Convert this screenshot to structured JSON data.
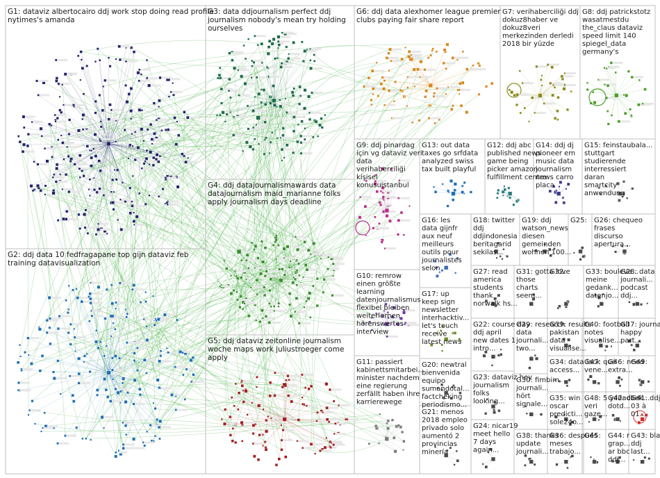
{
  "groups": [
    {
      "id": "G1",
      "keywords": [
        "dataviz albertocairo ddj work stop doing read profile",
        "nytimes's amanda"
      ],
      "color": "#23236b",
      "nodes": 260
    },
    {
      "id": "G2",
      "keywords": [
        "ddj data 10 fedfragapane top gijn dataviz feb",
        "training datavisualization"
      ],
      "color": "#1f6fb4",
      "nodes": 200
    },
    {
      "id": "G3",
      "keywords": [
        "data ddjournalism perfect ddj",
        "journalism nobody's mean try holding",
        "ourselves"
      ],
      "color": "#1e6b4a",
      "nodes": 150
    },
    {
      "id": "G4",
      "keywords": [
        "ddj datajournalismawards data",
        "datajournalism maid_marianne folks",
        "apply journalism days deadline"
      ],
      "color": "#3a8f2e",
      "nodes": 130
    },
    {
      "id": "G5",
      "keywords": [
        "ddj dataviz zeitonline journalism",
        "woche maps work juliustroeger come",
        "apply"
      ],
      "color": "#a21f1f",
      "nodes": 110
    },
    {
      "id": "G6",
      "keywords": [
        "ddj data alexhomer league premier",
        "clubs paying fair share report"
      ],
      "color": "#d9861a",
      "nodes": 90
    },
    {
      "id": "G7",
      "keywords": [
        "verihaberciliği ddj",
        "dokuz8haber ve",
        "dokuz8veri",
        "merkezinden derledi",
        "2018 bir yüzde"
      ],
      "color": "#8a8a1a",
      "nodes": 35
    },
    {
      "id": "G8",
      "keywords": [
        "ddj patrickstotz",
        "wasatmestdu",
        "the_claus dataviz",
        "speed limit 140",
        "spiegel_data",
        "germany's"
      ],
      "color": "#4a9e2a",
      "nodes": 30
    },
    {
      "id": "G9",
      "keywords": [
        "ddj pinardag",
        "için vg dataviz veri",
        "data",
        "verihaberciliği",
        "kişisel",
        "konusuistanbul"
      ],
      "color": "#b82d8a",
      "nodes": 40
    },
    {
      "id": "G10",
      "keywords": [
        "remrow",
        "einen größte",
        "learning",
        "datenjournalismus",
        "flexibel bleiben",
        "weiterlernen",
        "hörenswertes",
        "interview"
      ],
      "color": "#6b3a9e",
      "nodes": 20
    },
    {
      "id": "G11",
      "keywords": [
        "passiert",
        "kabinettsmitarbei...",
        "minister nachdem",
        "eine regierung",
        "zerfällt haben ihre",
        "karrierewege"
      ],
      "color": "#7a7a7a",
      "nodes": 18
    },
    {
      "id": "G12",
      "keywords": [
        "ddj abc",
        "published news",
        "game being",
        "picker amazon",
        "fulfillment centre"
      ],
      "color": "#2a7a7a",
      "nodes": 14
    },
    {
      "id": "G13",
      "keywords": [
        "out data",
        "taxes go srfdata",
        "analyzed swiss",
        "tax built playful"
      ],
      "color": "#1f6fb4",
      "nodes": 15
    },
    {
      "id": "G14",
      "keywords": [
        "ddj dj",
        "pioneer em",
        "music data",
        "journalism",
        "news carro",
        "placa"
      ],
      "color": "#3a3a8a",
      "nodes": 12
    },
    {
      "id": "G15",
      "keywords": [
        "feinstaubala...",
        "stuttgart",
        "studierende",
        "interressiert",
        "daran",
        "smartcity",
        "anwendung"
      ],
      "color": "#5a5a5a",
      "nodes": 10
    },
    {
      "id": "G16",
      "keywords": [
        "les",
        "data gijnfr",
        "aux neuf",
        "meilleurs",
        "outils pour",
        "journalistes",
        "selon"
      ],
      "color": "#3a6bb4",
      "nodes": 8
    },
    {
      "id": "G17",
      "keywords": [
        "up",
        "keep sign",
        "newsletter",
        "interhacktiv...",
        "let's touch",
        "receive",
        "latest news"
      ],
      "color": "#6b8a2a",
      "nodes": 10
    },
    {
      "id": "G18",
      "keywords": [
        "twitter",
        "ddj",
        "ddjindonesia",
        "beritagarid",
        "sekilas..."
      ],
      "color": "#4a4a4a",
      "nodes": 6
    },
    {
      "id": "G19",
      "keywords": [
        "ddj",
        "watson_news",
        "diesen",
        "gemeinden",
        "wohnen 100..."
      ],
      "color": "#4a4a4a",
      "nodes": 6
    },
    {
      "id": "G20",
      "keywords": [
        "newtral",
        "bienvenida",
        "equipo",
        "sumandotal...",
        "factcheking",
        "periodismo..."
      ],
      "color": "#4a4a4a",
      "nodes": 8
    },
    {
      "id": "G21",
      "keywords": [
        "menos",
        "2018 empleo",
        "privado solo",
        "aumentó 2",
        "provincias",
        "minería"
      ],
      "color": "#4a4a4a",
      "nodes": 6
    },
    {
      "id": "G22",
      "keywords": [
        "course day",
        "ddj april",
        "new dates 1",
        "intro..."
      ],
      "color": "#4a4a4a",
      "nodes": 6
    },
    {
      "id": "G23",
      "keywords": [
        "dataviz hey",
        "journalism",
        "folks",
        "looking..."
      ],
      "color": "#4a4a4a",
      "nodes": 6
    },
    {
      "id": "G24",
      "keywords": [
        "nicar19",
        "meet hello",
        "7 days",
        "again..."
      ],
      "color": "#4a4a4a",
      "nodes": 6
    },
    {
      "id": "G25",
      "keywords": [],
      "color": "#4a4a4a",
      "nodes": 5
    },
    {
      "id": "G26",
      "keywords": [
        "chequeo",
        "frases",
        "discurso",
        "apertura..."
      ],
      "color": "#4a4a4a",
      "nodes": 5
    },
    {
      "id": "G27",
      "keywords": [
        "read",
        "america",
        "students",
        "thank",
        "norwalk hs..."
      ],
      "color": "#4a4a4a",
      "nodes": 5
    },
    {
      "id": "G28",
      "keywords": [
        "data",
        "journali...",
        "podcast",
        "ddj..."
      ],
      "color": "#4a4a4a",
      "nodes": 4
    },
    {
      "id": "G29",
      "keywords": [
        "research",
        "data",
        "journali...",
        "two..."
      ],
      "color": "#4a4a4a",
      "nodes": 4
    },
    {
      "id": "G30",
      "keywords": [
        "fimbim",
        "journali...",
        "hört",
        "signale..."
      ],
      "color": "#4a4a4a",
      "nodes": 4
    },
    {
      "id": "G31",
      "keywords": [
        "gotta love",
        "those",
        "charts",
        "seem..."
      ],
      "color": "#4a4a4a",
      "nodes": 4
    },
    {
      "id": "G32",
      "keywords": [],
      "color": "#4a4a4a",
      "nodes": 4
    },
    {
      "id": "G33",
      "keywords": [
        "bouleva...",
        "meine",
        "gedank...",
        "datenjo..."
      ],
      "color": "#4a4a4a",
      "nodes": 4
    },
    {
      "id": "G34",
      "keywords": [
        "data lack",
        "access..."
      ],
      "color": "#4a4a4a",
      "nodes": 4
    },
    {
      "id": "G35",
      "keywords": [
        "win",
        "oscar",
        "predicti...",
        "sole24o..."
      ],
      "color": "#4a4a4a",
      "nodes": 4
    },
    {
      "id": "G36",
      "keywords": [
        "después",
        "meses",
        "trabajo..."
      ],
      "color": "#4a4a4a",
      "nodes": 4
    },
    {
      "id": "G37",
      "keywords": [
        "journalis...",
        "happy",
        "part..."
      ],
      "color": "#4a4a4a",
      "nodes": 4
    },
    {
      "id": "G38",
      "keywords": [
        "thanks",
        "update",
        "journali..."
      ],
      "color": "#4a4a4a",
      "nodes": 4
    },
    {
      "id": "G39",
      "keywords": [
        "results",
        "pakistan",
        "data",
        "visualise..."
      ],
      "color": "#4a4a4a",
      "nodes": 4
    },
    {
      "id": "G40",
      "keywords": [
        "football",
        "notes",
        "visualise..."
      ],
      "color": "#4a4a4a",
      "nodes": 4
    },
    {
      "id": "G41",
      "keywords": [
        "ddj 02",
        "03 à",
        "01..."
      ],
      "color": "#d92a2a",
      "nodes": 3
    },
    {
      "id": "G42",
      "keywords": [
        "chek...",
        "dotd..."
      ],
      "color": "#4a4a4a",
      "nodes": 3
    },
    {
      "id": "G43",
      "keywords": [
        "blac...",
        "ddj",
        "last..."
      ],
      "color": "#4a4a4a",
      "nodes": 3
    },
    {
      "id": "G44",
      "keywords": [
        "r",
        "grap...",
        "ar bbc",
        "ddj..."
      ],
      "color": "#4a4a4a",
      "nodes": 3
    },
    {
      "id": "G45",
      "keywords": [],
      "color": "#4a4a4a",
      "nodes": 3
    },
    {
      "id": "G46",
      "keywords": [
        "need",
        "extra..."
      ],
      "color": "#4a4a4a",
      "nodes": 3
    },
    {
      "id": "G47",
      "keywords": [
        "qué",
        "vene..."
      ],
      "color": "#4a4a4a",
      "nodes": 3
    },
    {
      "id": "G48",
      "keywords": [
        "5 yıldada",
        "veri",
        "gaze..."
      ],
      "color": "#4a4a4a",
      "nodes": 3
    },
    {
      "id": "G49",
      "keywords": [],
      "color": "#4a4a4a",
      "nodes": 3
    }
  ],
  "edge_color": "#3aa83a"
}
